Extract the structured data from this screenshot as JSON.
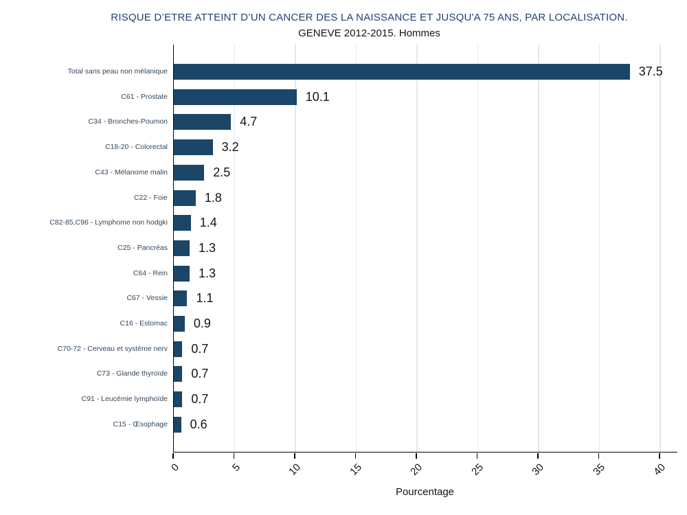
{
  "chart_data": {
    "type": "bar",
    "orientation": "horizontal",
    "title": "RISQUE D’ETRE ATTEINT D’UN CANCER DES LA NAISSANCE ET JUSQU'A 75 ANS, PAR LOCALISATION.",
    "subtitle": "GENEVE 2012-2015. Hommes",
    "xlabel": "Pourcentage",
    "categories": [
      "Total sans peau non mélanique",
      "C61 - Prostate",
      "C34 - Bronches-Poumon",
      "C18-20 - Colorectal",
      "C43 - Mélanome malin",
      "C22 - Foie",
      "C82-85,C96 - Lymphome non hodgki",
      "C25 - Pancréas",
      "C64 - Rein",
      "C67 - Vessie",
      "C16 - Estomac",
      "C70-72 - Cerveau et système nerv",
      "C73 - Glande thyroïde",
      "C91 - Leucémie lymphoïde",
      "C15 - Œsophage"
    ],
    "values": [
      37.5,
      10.1,
      4.7,
      3.2,
      2.5,
      1.8,
      1.4,
      1.3,
      1.3,
      1.1,
      0.9,
      0.7,
      0.7,
      0.7,
      0.6
    ],
    "xticks": [
      0,
      5,
      10,
      15,
      20,
      25,
      30,
      35,
      40
    ],
    "xlim": [
      0,
      41.4
    ],
    "grid": "vertical",
    "legend": "none",
    "colors": {
      "bar": "#1C4668",
      "title": "#1F4273",
      "gridline": "#DFE9F2",
      "axis": "#000000",
      "category_label": "#33465C",
      "value_label": "#141414",
      "tick_label": "#141414"
    }
  }
}
